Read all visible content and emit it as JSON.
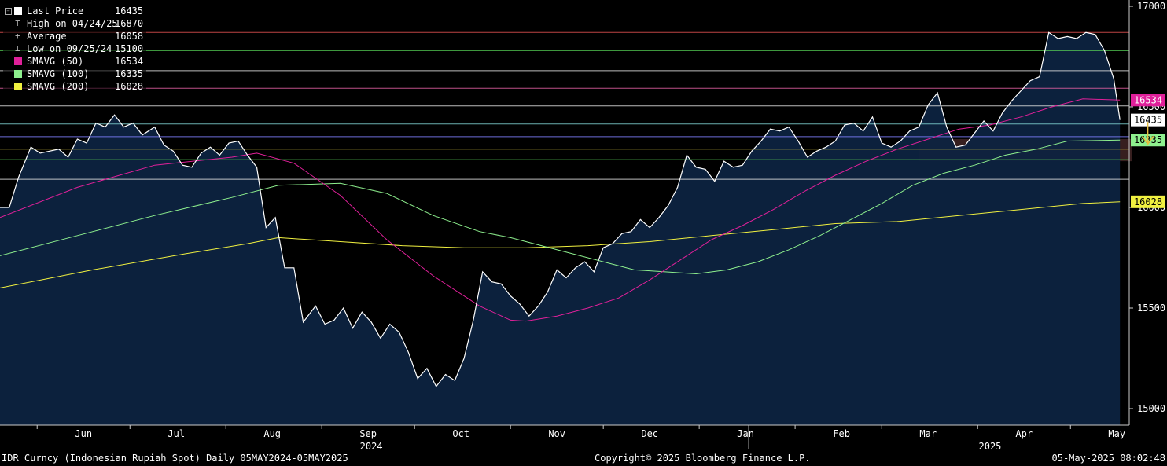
{
  "legend": {
    "items": [
      {
        "label": "Last Price",
        "value": "16435",
        "color": "#ffffff",
        "kind": "swatch"
      },
      {
        "label": "High on 04/24/25",
        "value": "16870",
        "color": "#bbbbbb",
        "kind": "high"
      },
      {
        "label": "Average",
        "value": "16058",
        "color": "#bbbbbb",
        "kind": "avg"
      },
      {
        "label": "Low on 09/25/24",
        "value": "15100",
        "color": "#bbbbbb",
        "kind": "low"
      },
      {
        "label": "SMAVG (50)",
        "value": "16534",
        "color": "#e0209a",
        "kind": "swatch"
      },
      {
        "label": "SMAVG (100)",
        "value": "16335",
        "color": "#8ef08e",
        "kind": "swatch"
      },
      {
        "label": "SMAVG (200)",
        "value": "16028",
        "color": "#f0f040",
        "kind": "swatch"
      }
    ]
  },
  "footer": {
    "left": "IDR Curncy (Indonesian Rupiah Spot)  Daily 05MAY2024-05MAY2025",
    "center": "Copyright© 2025 Bloomberg Finance L.P.",
    "right": "05-May-2025 08:02:48"
  },
  "chart_data": {
    "type": "line",
    "ylim": [
      14960,
      17030
    ],
    "yticks": [
      15000,
      15500,
      16000,
      16500,
      17000
    ],
    "ytick_labels": [
      "15000",
      "15500",
      "16000",
      "16500",
      "17000"
    ],
    "xlim": [
      0,
      365
    ],
    "x_tick_days": [
      27,
      57,
      88,
      119,
      149,
      180,
      210,
      241,
      272,
      300,
      331,
      361
    ],
    "x_tick_labels": [
      "Jun",
      "Jul",
      "Aug",
      "Sep",
      "Oct",
      "Nov",
      "Dec",
      "Jan",
      "Feb",
      "Mar",
      "Apr",
      "May"
    ],
    "year_labels": [
      {
        "day": 120,
        "label": "2024"
      },
      {
        "day": 320,
        "label": "2025"
      }
    ],
    "year_divider_day": 242,
    "last_day": 358,
    "colors": {
      "price": "#ffffff",
      "area": "#0d2340",
      "sma50": "#e0209a",
      "sma100": "#8ef08e",
      "sma200": "#f0f040",
      "high_line": "#e05050",
      "low_line": "#40c040",
      "grid": "#8a8a8a"
    },
    "horizontal_lines": [
      {
        "value": 16870,
        "color": "#e05050"
      },
      {
        "value": 16780,
        "color": "#55cc55"
      },
      {
        "value": 16680,
        "color": "#dddddd"
      },
      {
        "value": 16593,
        "color": "#e060a0"
      },
      {
        "value": 16505,
        "color": "#dddddd"
      },
      {
        "value": 16415,
        "color": "#7fd0d0"
      },
      {
        "value": 16352,
        "color": "#8080ff"
      },
      {
        "value": 16290,
        "color": "#e0d040"
      },
      {
        "value": 16238,
        "color": "#50c050"
      },
      {
        "value": 16140,
        "color": "#e0e0e0"
      }
    ],
    "zone": {
      "from_day": 297,
      "to_day": 366,
      "low": 16230,
      "high": 16340,
      "color": "#4a2a2a"
    },
    "arrow": {
      "day": 371,
      "value_top": 16425,
      "value_bottom": 16315,
      "color": "#e8c040"
    },
    "price_labels": [
      {
        "text": "16534",
        "value": 16534,
        "bg": "#e0209a",
        "fg": "#ffffff"
      },
      {
        "text": "16435",
        "value": 16435,
        "bg": "#ffffff",
        "fg": "#000000"
      },
      {
        "text": "16335",
        "value": 16335,
        "bg": "#8ef08e",
        "fg": "#000000"
      },
      {
        "text": "16028",
        "value": 16028,
        "bg": "#f0f040",
        "fg": "#000000"
      }
    ],
    "series": [
      {
        "name": "Last Price",
        "points": [
          [
            0,
            16000
          ],
          [
            3,
            16000
          ],
          [
            6,
            16150
          ],
          [
            10,
            16300
          ],
          [
            13,
            16270
          ],
          [
            16,
            16280
          ],
          [
            19,
            16290
          ],
          [
            22,
            16250
          ],
          [
            25,
            16340
          ],
          [
            28,
            16320
          ],
          [
            31,
            16420
          ],
          [
            34,
            16400
          ],
          [
            37,
            16460
          ],
          [
            40,
            16400
          ],
          [
            43,
            16420
          ],
          [
            46,
            16360
          ],
          [
            50,
            16400
          ],
          [
            53,
            16310
          ],
          [
            56,
            16280
          ],
          [
            59,
            16210
          ],
          [
            62,
            16200
          ],
          [
            65,
            16270
          ],
          [
            68,
            16300
          ],
          [
            71,
            16260
          ],
          [
            74,
            16320
          ],
          [
            77,
            16330
          ],
          [
            80,
            16260
          ],
          [
            83,
            16200
          ],
          [
            86,
            15900
          ],
          [
            89,
            15950
          ],
          [
            92,
            15700
          ],
          [
            95,
            15700
          ],
          [
            98,
            15430
          ],
          [
            102,
            15510
          ],
          [
            105,
            15420
          ],
          [
            108,
            15440
          ],
          [
            111,
            15500
          ],
          [
            114,
            15400
          ],
          [
            117,
            15480
          ],
          [
            120,
            15430
          ],
          [
            123,
            15350
          ],
          [
            126,
            15420
          ],
          [
            129,
            15380
          ],
          [
            132,
            15280
          ],
          [
            135,
            15150
          ],
          [
            138,
            15200
          ],
          [
            141,
            15110
          ],
          [
            144,
            15170
          ],
          [
            147,
            15140
          ],
          [
            150,
            15250
          ],
          [
            153,
            15440
          ],
          [
            156,
            15680
          ],
          [
            159,
            15630
          ],
          [
            162,
            15620
          ],
          [
            165,
            15560
          ],
          [
            168,
            15520
          ],
          [
            171,
            15460
          ],
          [
            174,
            15510
          ],
          [
            177,
            15580
          ],
          [
            180,
            15690
          ],
          [
            183,
            15650
          ],
          [
            186,
            15700
          ],
          [
            189,
            15730
          ],
          [
            192,
            15680
          ],
          [
            195,
            15800
          ],
          [
            198,
            15820
          ],
          [
            201,
            15870
          ],
          [
            204,
            15880
          ],
          [
            207,
            15940
          ],
          [
            210,
            15900
          ],
          [
            213,
            15950
          ],
          [
            216,
            16010
          ],
          [
            219,
            16100
          ],
          [
            222,
            16260
          ],
          [
            225,
            16200
          ],
          [
            228,
            16190
          ],
          [
            231,
            16130
          ],
          [
            234,
            16230
          ],
          [
            237,
            16200
          ],
          [
            240,
            16210
          ],
          [
            243,
            16280
          ],
          [
            246,
            16330
          ],
          [
            249,
            16390
          ],
          [
            252,
            16380
          ],
          [
            255,
            16400
          ],
          [
            258,
            16330
          ],
          [
            261,
            16250
          ],
          [
            264,
            16280
          ],
          [
            267,
            16300
          ],
          [
            270,
            16330
          ],
          [
            273,
            16410
          ],
          [
            276,
            16420
          ],
          [
            279,
            16380
          ],
          [
            282,
            16450
          ],
          [
            285,
            16320
          ],
          [
            288,
            16300
          ],
          [
            291,
            16330
          ],
          [
            294,
            16380
          ],
          [
            297,
            16400
          ],
          [
            300,
            16510
          ],
          [
            303,
            16570
          ],
          [
            306,
            16400
          ],
          [
            309,
            16300
          ],
          [
            312,
            16310
          ],
          [
            315,
            16370
          ],
          [
            318,
            16430
          ],
          [
            321,
            16380
          ],
          [
            324,
            16470
          ],
          [
            327,
            16530
          ],
          [
            330,
            16580
          ],
          [
            333,
            16630
          ],
          [
            336,
            16650
          ],
          [
            339,
            16870
          ],
          [
            342,
            16840
          ],
          [
            345,
            16850
          ],
          [
            348,
            16840
          ],
          [
            351,
            16870
          ],
          [
            354,
            16860
          ],
          [
            357,
            16780
          ],
          [
            360,
            16640
          ],
          [
            362,
            16435
          ]
        ]
      },
      {
        "name": "SMAVG (50)",
        "points": [
          [
            0,
            15950
          ],
          [
            25,
            16100
          ],
          [
            50,
            16210
          ],
          [
            75,
            16250
          ],
          [
            83,
            16270
          ],
          [
            95,
            16220
          ],
          [
            110,
            16060
          ],
          [
            125,
            15840
          ],
          [
            140,
            15660
          ],
          [
            155,
            15510
          ],
          [
            165,
            15440
          ],
          [
            170,
            15435
          ],
          [
            180,
            15460
          ],
          [
            190,
            15500
          ],
          [
            200,
            15550
          ],
          [
            210,
            15640
          ],
          [
            220,
            15740
          ],
          [
            230,
            15840
          ],
          [
            240,
            15910
          ],
          [
            250,
            15990
          ],
          [
            260,
            16080
          ],
          [
            270,
            16160
          ],
          [
            280,
            16230
          ],
          [
            290,
            16290
          ],
          [
            300,
            16340
          ],
          [
            310,
            16390
          ],
          [
            320,
            16410
          ],
          [
            330,
            16450
          ],
          [
            340,
            16500
          ],
          [
            350,
            16540
          ],
          [
            362,
            16534
          ]
        ]
      },
      {
        "name": "SMAVG (100)",
        "points": [
          [
            0,
            15760
          ],
          [
            25,
            15860
          ],
          [
            50,
            15960
          ],
          [
            75,
            16050
          ],
          [
            90,
            16110
          ],
          [
            110,
            16120
          ],
          [
            125,
            16070
          ],
          [
            140,
            15960
          ],
          [
            155,
            15880
          ],
          [
            165,
            15850
          ],
          [
            175,
            15810
          ],
          [
            185,
            15770
          ],
          [
            195,
            15730
          ],
          [
            205,
            15690
          ],
          [
            215,
            15680
          ],
          [
            225,
            15670
          ],
          [
            235,
            15690
          ],
          [
            245,
            15730
          ],
          [
            255,
            15790
          ],
          [
            265,
            15860
          ],
          [
            275,
            15940
          ],
          [
            285,
            16020
          ],
          [
            295,
            16110
          ],
          [
            305,
            16170
          ],
          [
            315,
            16210
          ],
          [
            325,
            16260
          ],
          [
            335,
            16290
          ],
          [
            345,
            16330
          ],
          [
            362,
            16335
          ]
        ]
      },
      {
        "name": "SMAVG (200)",
        "points": [
          [
            0,
            15600
          ],
          [
            30,
            15690
          ],
          [
            60,
            15770
          ],
          [
            80,
            15820
          ],
          [
            90,
            15850
          ],
          [
            110,
            15830
          ],
          [
            130,
            15810
          ],
          [
            150,
            15800
          ],
          [
            170,
            15800
          ],
          [
            190,
            15810
          ],
          [
            210,
            15830
          ],
          [
            230,
            15860
          ],
          [
            250,
            15890
          ],
          [
            270,
            15920
          ],
          [
            290,
            15930
          ],
          [
            310,
            15960
          ],
          [
            330,
            15990
          ],
          [
            350,
            16020
          ],
          [
            362,
            16028
          ]
        ]
      }
    ]
  }
}
